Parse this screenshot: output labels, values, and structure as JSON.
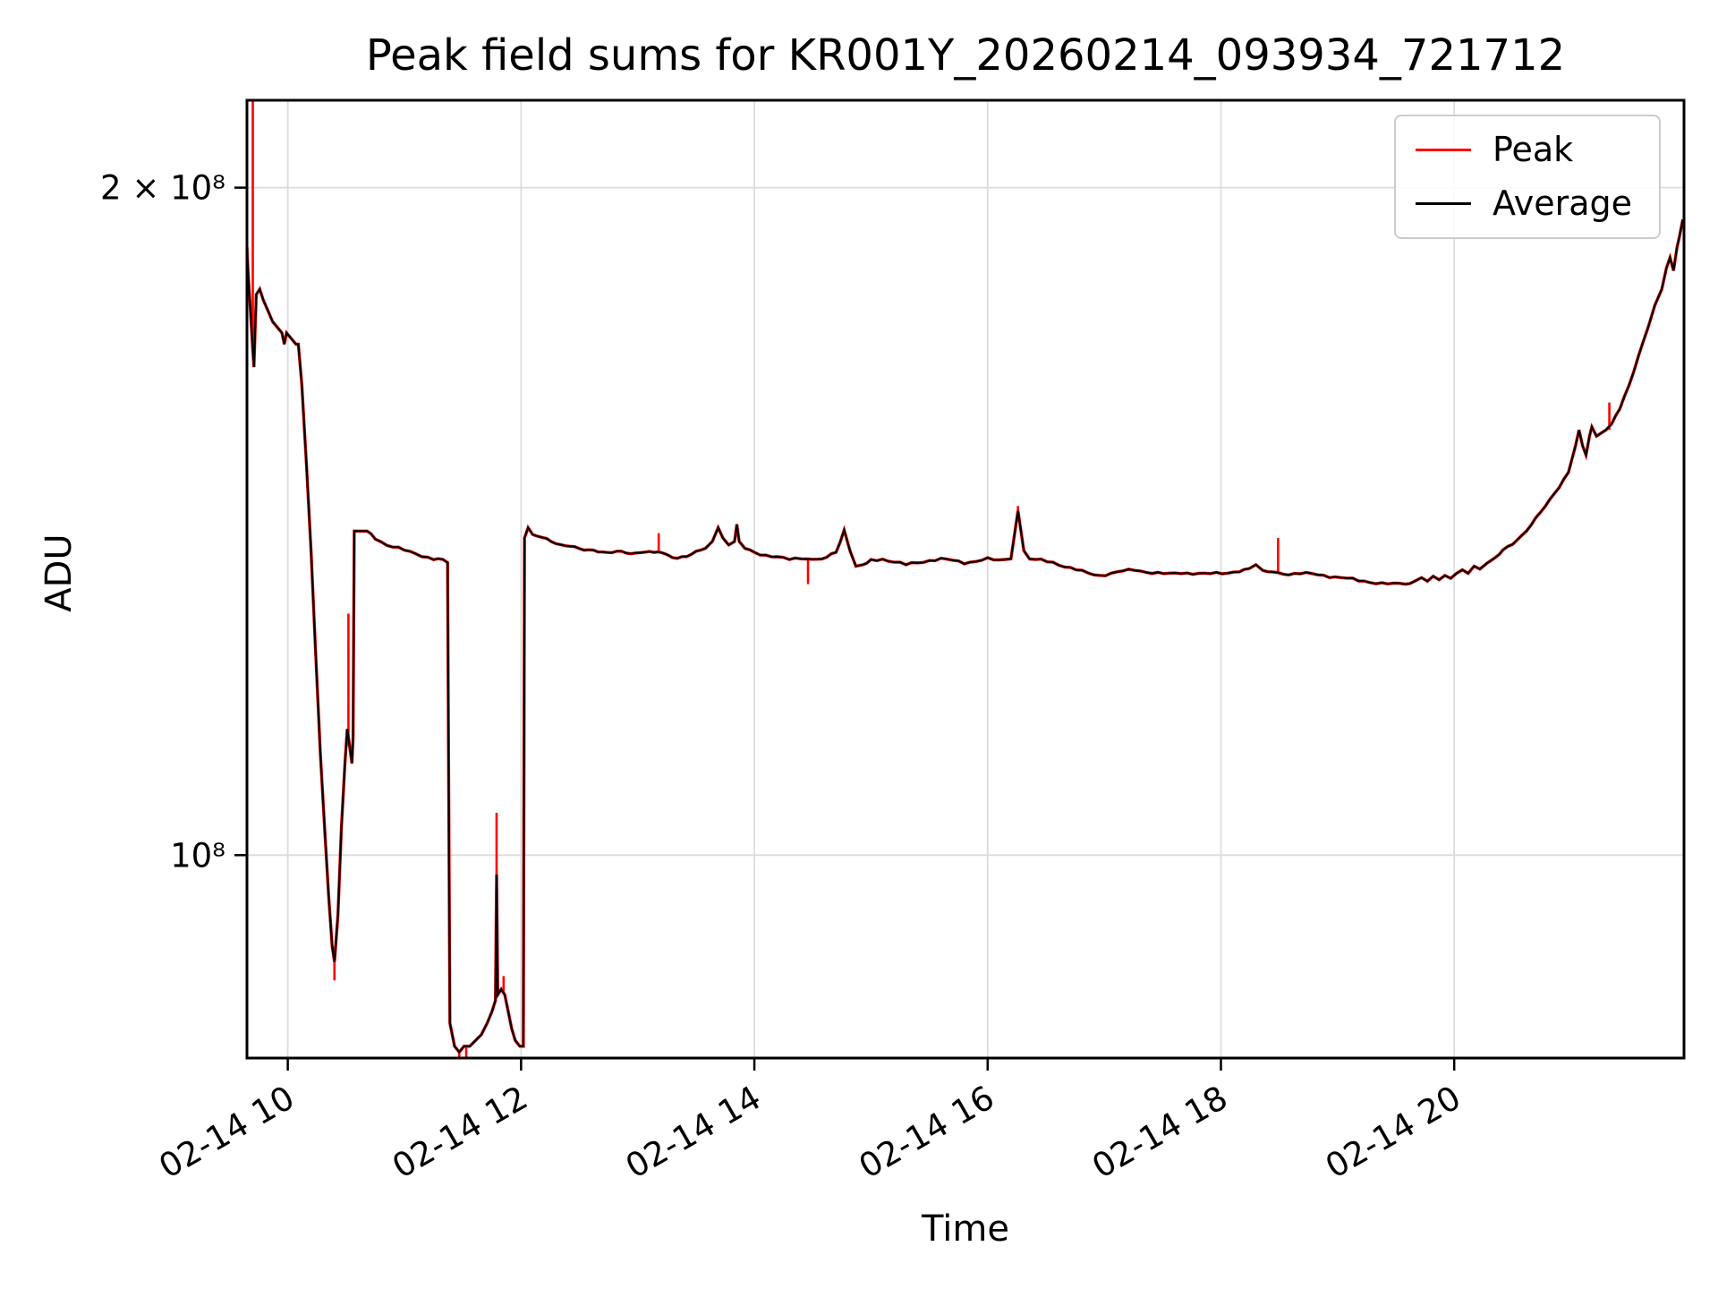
{
  "chart_data": {
    "type": "line",
    "title": "Peak field sums for KR001Y_20260214_093934_721712",
    "xlabel": "Time",
    "ylabel": "ADU",
    "yscale": "log",
    "grid": true,
    "legend_position": "upper right",
    "xlim": [
      9.65,
      21.97
    ],
    "ylim": [
      81000000.0,
      219000000.0
    ],
    "x_unit": "hour of day on 02-14",
    "x_ticks": [
      {
        "t": 10,
        "label": "02-14 10"
      },
      {
        "t": 12,
        "label": "02-14 12"
      },
      {
        "t": 14,
        "label": "02-14 14"
      },
      {
        "t": 16,
        "label": "02-14 16"
      },
      {
        "t": 18,
        "label": "02-14 18"
      },
      {
        "t": 20,
        "label": "02-14 20"
      }
    ],
    "y_ticks": [
      {
        "value": 100000000.0,
        "label": "10⁸"
      },
      {
        "value": 200000000.0,
        "label": "2 × 10⁸"
      }
    ],
    "colors": {
      "peak": "#ff0000",
      "average": "#000000",
      "grid": "#dcdcdc",
      "spine": "#000000"
    },
    "legend": {
      "entries": [
        {
          "label": "Peak",
          "color": "#ff0000"
        },
        {
          "label": "Average",
          "color": "#000000"
        }
      ]
    },
    "series": [
      {
        "name": "Peak",
        "color": "#ff0000",
        "definition": "equal to Average plus vertical spikes",
        "spikes": [
          [
            9.7,
            169000000.0,
            230000000.0
          ],
          [
            10.4,
            89500000.0,
            87800000.0
          ],
          [
            10.52,
            112000000.0,
            128500000.0
          ],
          [
            11.47,
            81500000.0,
            80000000.0
          ],
          [
            11.53,
            82000000.0,
            80500000.0
          ],
          [
            11.79,
            98000000.0,
            104500000.0
          ],
          [
            11.85,
            86800000.0,
            88200000.0
          ],
          [
            13.18,
            137000000.0,
            139700000.0
          ],
          [
            14.46,
            136000000.0,
            132500000.0
          ],
          [
            16.26,
            143000000.0,
            143700000.0
          ],
          [
            18.49,
            134100000.0,
            139000000.0
          ],
          [
            21.33,
            155500000.0,
            160000000.0
          ]
        ]
      },
      {
        "name": "Average",
        "color": "#000000",
        "points": [
          [
            9.65,
            188000000.0
          ],
          [
            9.66,
            183000000.0
          ],
          [
            9.68,
            176000000.0
          ],
          [
            9.7,
            169000000.0
          ],
          [
            9.71,
            166000000.0
          ],
          [
            9.73,
            179000000.0
          ],
          [
            9.76,
            180000000.0
          ],
          [
            9.79,
            178000000.0
          ],
          [
            9.83,
            176000000.0
          ],
          [
            9.87,
            174000000.0
          ],
          [
            9.91,
            173000000.0
          ],
          [
            9.95,
            172000000.0
          ],
          [
            9.97,
            170000000.0
          ],
          [
            9.99,
            172000000.0
          ],
          [
            10.03,
            171000000.0
          ],
          [
            10.07,
            170000000.0
          ],
          [
            10.09,
            170000000.0
          ],
          [
            10.12,
            163000000.0
          ],
          [
            10.16,
            150000000.0
          ],
          [
            10.2,
            137000000.0
          ],
          [
            10.24,
            123000000.0
          ],
          [
            10.28,
            111000000.0
          ],
          [
            10.32,
            102000000.0
          ],
          [
            10.35,
            96000000.0
          ],
          [
            10.38,
            91000000.0
          ],
          [
            10.4,
            89500000.0
          ],
          [
            10.43,
            94000000.0
          ],
          [
            10.46,
            103000000.0
          ],
          [
            10.49,
            110000000.0
          ],
          [
            10.51,
            114000000.0
          ],
          [
            10.53,
            112000000.0
          ],
          [
            10.55,
            110000000.0
          ],
          [
            10.56,
            113000000.0
          ],
          [
            10.57,
            140000000.0
          ],
          [
            10.62,
            140000000.0
          ],
          [
            10.68,
            140000000.0
          ],
          [
            10.75,
            139000000.0
          ],
          [
            10.85,
            138000000.0
          ],
          [
            10.95,
            137500000.0
          ],
          [
            11.05,
            137000000.0
          ],
          [
            11.15,
            136500000.0
          ],
          [
            11.25,
            136000000.0
          ],
          [
            11.33,
            136000000.0
          ],
          [
            11.37,
            135500000.0
          ],
          [
            11.39,
            84000000.0
          ],
          [
            11.43,
            82000000.0
          ],
          [
            11.47,
            81500000.0
          ],
          [
            11.51,
            82000000.0
          ],
          [
            11.56,
            82000000.0
          ],
          [
            11.61,
            82500000.0
          ],
          [
            11.66,
            83000000.0
          ],
          [
            11.71,
            84000000.0
          ],
          [
            11.75,
            85000000.0
          ],
          [
            11.78,
            86000000.0
          ],
          [
            11.79,
            98000000.0
          ],
          [
            11.8,
            86500000.0
          ],
          [
            11.83,
            87000000.0
          ],
          [
            11.86,
            86500000.0
          ],
          [
            11.89,
            85000000.0
          ],
          [
            11.92,
            83500000.0
          ],
          [
            11.95,
            82500000.0
          ],
          [
            11.99,
            82000000.0
          ],
          [
            12.02,
            82000000.0
          ],
          [
            12.03,
            139000000.0
          ],
          [
            12.06,
            140500000.0
          ],
          [
            12.1,
            139500000.0
          ],
          [
            12.18,
            139000000.0
          ],
          [
            12.26,
            138500000.0
          ],
          [
            12.34,
            138000000.0
          ],
          [
            12.42,
            138000000.0
          ],
          [
            12.5,
            137500000.0
          ],
          [
            12.58,
            137200000.0
          ],
          [
            12.66,
            137000000.0
          ],
          [
            12.74,
            136800000.0
          ],
          [
            12.82,
            137200000.0
          ],
          [
            12.9,
            137000000.0
          ],
          [
            12.98,
            136800000.0
          ],
          [
            13.06,
            137000000.0
          ],
          [
            13.14,
            136800000.0
          ],
          [
            13.18,
            137000000.0
          ],
          [
            13.26,
            136500000.0
          ],
          [
            13.34,
            136200000.0
          ],
          [
            13.42,
            136500000.0
          ],
          [
            13.5,
            137000000.0
          ],
          [
            13.58,
            137500000.0
          ],
          [
            13.64,
            138500000.0
          ],
          [
            13.69,
            140500000.0
          ],
          [
            13.73,
            139000000.0
          ],
          [
            13.78,
            138000000.0
          ],
          [
            13.83,
            138500000.0
          ],
          [
            13.85,
            141000000.0
          ],
          [
            13.87,
            138500000.0
          ],
          [
            13.92,
            137500000.0
          ],
          [
            14.0,
            137000000.0
          ],
          [
            14.1,
            136500000.0
          ],
          [
            14.2,
            136200000.0
          ],
          [
            14.3,
            136000000.0
          ],
          [
            14.4,
            136200000.0
          ],
          [
            14.46,
            136000000.0
          ],
          [
            14.54,
            135800000.0
          ],
          [
            14.62,
            136200000.0
          ],
          [
            14.7,
            137000000.0
          ],
          [
            14.77,
            140000000.0
          ],
          [
            14.82,
            137200000.0
          ],
          [
            14.87,
            135000000.0
          ],
          [
            14.93,
            135200000.0
          ],
          [
            15.0,
            135800000.0
          ],
          [
            15.1,
            136000000.0
          ],
          [
            15.2,
            135600000.0
          ],
          [
            15.3,
            135200000.0
          ],
          [
            15.4,
            135500000.0
          ],
          [
            15.5,
            135800000.0
          ],
          [
            15.6,
            136000000.0
          ],
          [
            15.7,
            135800000.0
          ],
          [
            15.8,
            135500000.0
          ],
          [
            15.9,
            135700000.0
          ],
          [
            16.0,
            136000000.0
          ],
          [
            16.1,
            135800000.0
          ],
          [
            16.2,
            136200000.0
          ],
          [
            16.26,
            143000000.0
          ],
          [
            16.31,
            137200000.0
          ],
          [
            16.36,
            136000000.0
          ],
          [
            16.46,
            135800000.0
          ],
          [
            16.56,
            135500000.0
          ],
          [
            16.66,
            135000000.0
          ],
          [
            16.76,
            134500000.0
          ],
          [
            16.86,
            134000000.0
          ],
          [
            16.96,
            133700000.0
          ],
          [
            17.06,
            134000000.0
          ],
          [
            17.16,
            134300000.0
          ],
          [
            17.26,
            134500000.0
          ],
          [
            17.36,
            134200000.0
          ],
          [
            17.46,
            134000000.0
          ],
          [
            17.56,
            133900000.0
          ],
          [
            17.66,
            134100000.0
          ],
          [
            17.76,
            134000000.0
          ],
          [
            17.86,
            133900000.0
          ],
          [
            17.96,
            134000000.0
          ],
          [
            18.06,
            134100000.0
          ],
          [
            18.16,
            134300000.0
          ],
          [
            18.24,
            134800000.0
          ],
          [
            18.3,
            135200000.0
          ],
          [
            18.36,
            134400000.0
          ],
          [
            18.44,
            134000000.0
          ],
          [
            18.49,
            134100000.0
          ],
          [
            18.58,
            133900000.0
          ],
          [
            18.68,
            134000000.0
          ],
          [
            18.78,
            133900000.0
          ],
          [
            18.88,
            133700000.0
          ],
          [
            18.98,
            133500000.0
          ],
          [
            19.08,
            133300000.0
          ],
          [
            19.18,
            133000000.0
          ],
          [
            19.28,
            132800000.0
          ],
          [
            19.38,
            132600000.0
          ],
          [
            19.48,
            132500000.0
          ],
          [
            19.58,
            132600000.0
          ],
          [
            19.66,
            132900000.0
          ],
          [
            19.72,
            133400000.0
          ],
          [
            19.77,
            132900000.0
          ],
          [
            19.82,
            133600000.0
          ],
          [
            19.87,
            133100000.0
          ],
          [
            19.92,
            133700000.0
          ],
          [
            19.97,
            133300000.0
          ],
          [
            20.02,
            134000000.0
          ],
          [
            20.07,
            134500000.0
          ],
          [
            20.12,
            134000000.0
          ],
          [
            20.17,
            135000000.0
          ],
          [
            20.22,
            134600000.0
          ],
          [
            20.28,
            135400000.0
          ],
          [
            20.35,
            136200000.0
          ],
          [
            20.42,
            137200000.0
          ],
          [
            20.5,
            138200000.0
          ],
          [
            20.58,
            139400000.0
          ],
          [
            20.66,
            141000000.0
          ],
          [
            20.74,
            142800000.0
          ],
          [
            20.82,
            144500000.0
          ],
          [
            20.9,
            146500000.0
          ],
          [
            20.98,
            148800000.0
          ],
          [
            21.04,
            153000000.0
          ],
          [
            21.07,
            155500000.0
          ],
          [
            21.1,
            153000000.0
          ],
          [
            21.13,
            151500000.0
          ],
          [
            21.16,
            154500000.0
          ],
          [
            21.18,
            156000000.0
          ],
          [
            21.22,
            154500000.0
          ],
          [
            21.26,
            155000000.0
          ],
          [
            21.3,
            155500000.0
          ],
          [
            21.35,
            156500000.0
          ],
          [
            21.42,
            159000000.0
          ],
          [
            21.5,
            163000000.0
          ],
          [
            21.58,
            168000000.0
          ],
          [
            21.66,
            173000000.0
          ],
          [
            21.72,
            177000000.0
          ],
          [
            21.78,
            180000000.0
          ],
          [
            21.82,
            184000000.0
          ],
          [
            21.85,
            186000000.0
          ],
          [
            21.88,
            183500000.0
          ],
          [
            21.91,
            188000000.0
          ],
          [
            21.93,
            190000000.0
          ],
          [
            21.96,
            193500000.0
          ]
        ]
      }
    ]
  }
}
